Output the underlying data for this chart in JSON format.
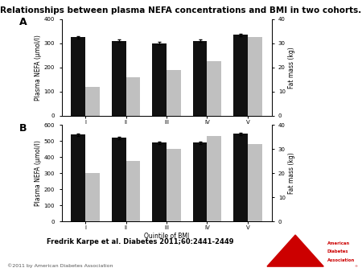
{
  "title": "Relationships between plasma NEFA concentrations and BMI in two cohorts.",
  "panels": [
    {
      "label": "A",
      "quintiles": [
        "I",
        "II",
        "III",
        "IV",
        "V"
      ],
      "nefa_values": [
        325,
        310,
        300,
        310,
        335
      ],
      "nefa_errors": [
        5,
        5,
        5,
        5,
        5
      ],
      "fat_values": [
        12,
        16,
        19,
        22.5,
        32.5
      ],
      "nefa_ylim": [
        0,
        400
      ],
      "nefa_yticks": [
        0,
        100,
        200,
        300,
        400
      ],
      "fat_ylim": [
        0,
        40
      ],
      "fat_yticks": [
        0,
        10,
        20,
        30,
        40
      ]
    },
    {
      "label": "B",
      "quintiles": [
        "I",
        "II",
        "III",
        "IV",
        "V"
      ],
      "nefa_values": [
        540,
        520,
        490,
        490,
        545
      ],
      "nefa_errors": [
        8,
        7,
        7,
        6,
        8
      ],
      "fat_values": [
        20,
        25,
        30,
        35.5,
        32
      ],
      "nefa_ylim": [
        0,
        600
      ],
      "nefa_yticks": [
        0,
        100,
        200,
        300,
        400,
        500,
        600
      ],
      "fat_ylim": [
        0,
        40
      ],
      "fat_yticks": [
        0,
        10,
        20,
        30,
        40
      ]
    }
  ],
  "nefa_ylabel": "Plasma NEFA (μmol/l)",
  "fat_ylabel": "Fat mass (kg)",
  "xlabel": "Quintile of BMI",
  "bar_color_black": "#111111",
  "bar_color_gray": "#c0c0c0",
  "citation": "Fredrik Karpe et al. Diabetes 2011;60:2441-2449",
  "copyright": "©2011 by American Diabetes Association",
  "bg_color": "#ffffff",
  "bar_width": 0.35,
  "title_fontsize": 7.5,
  "axis_fontsize": 5.5,
  "tick_fontsize": 5,
  "label_fontsize": 9
}
